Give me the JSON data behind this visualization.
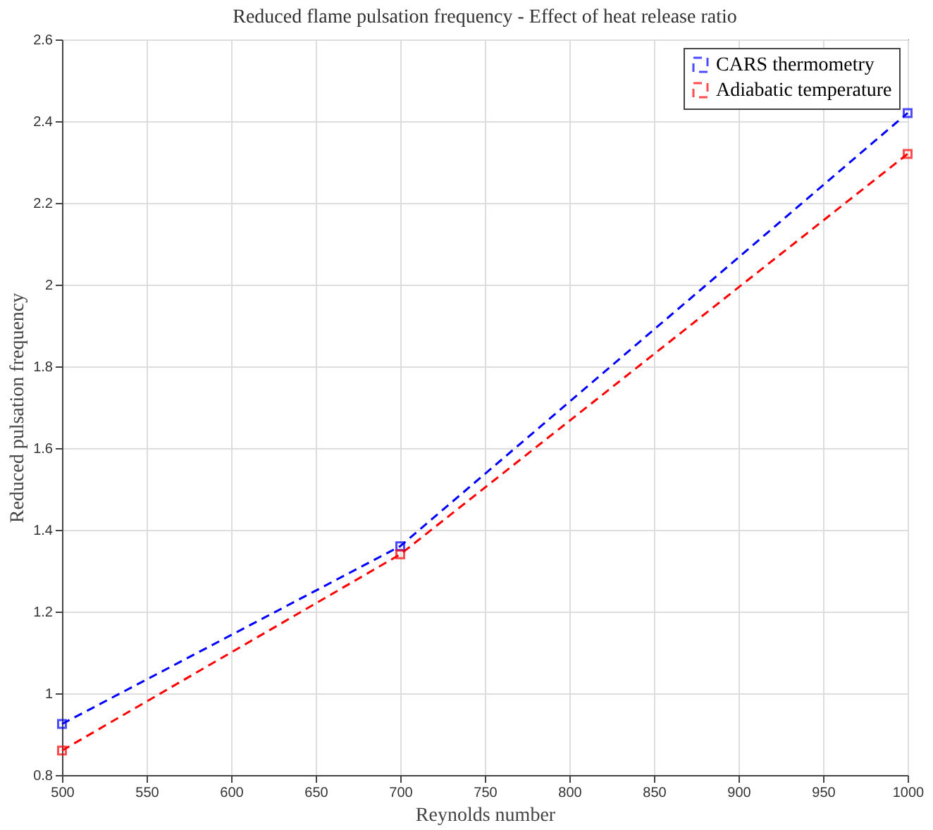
{
  "chart_data": {
    "type": "line",
    "title": "Reduced flame pulsation frequency - Effect of heat release ratio",
    "xlabel": "Reynolds number",
    "ylabel": "Reduced pulsation frequency",
    "x": [
      500,
      700,
      1000
    ],
    "series": [
      {
        "name": "CARS thermometry",
        "color": "#0000ff",
        "values": [
          0.925,
          1.36,
          2.42
        ]
      },
      {
        "name": "Adiabatic temperature",
        "color": "#ff0000",
        "values": [
          0.86,
          1.34,
          2.32
        ]
      }
    ],
    "xlim": [
      500,
      1000
    ],
    "xticks": [
      500,
      550,
      600,
      650,
      700,
      750,
      800,
      850,
      900,
      950,
      1000
    ],
    "ylim": [
      0.8,
      2.6
    ],
    "yticks": [
      0.8,
      1,
      1.2,
      1.4,
      1.6,
      1.8,
      2,
      2.2,
      2.4,
      2.6
    ],
    "grid": true,
    "legend": "top right",
    "marker": "square",
    "line_style": "dashed"
  }
}
